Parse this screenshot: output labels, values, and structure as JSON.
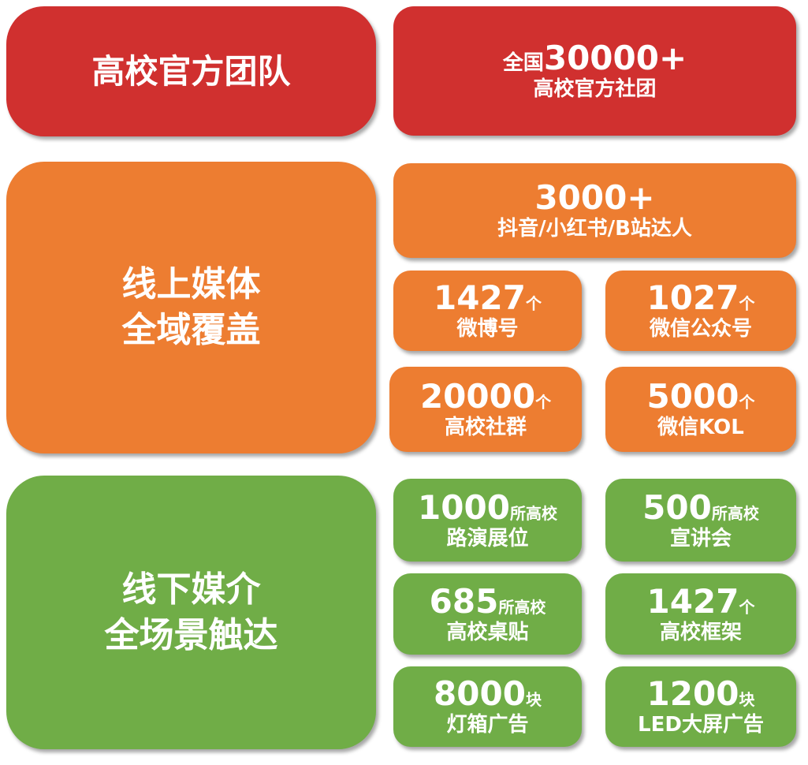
{
  "colors": {
    "red": "#d0302f",
    "orange": "#ed7d31",
    "green": "#70ad47"
  },
  "team": {
    "title": "高校官方团队",
    "stat_line1_prefix": "全国",
    "stat_num": "30000+",
    "stat_line2": "高校官方社团"
  },
  "online": {
    "title_line1": "线上媒体",
    "title_line2": "全域覆盖",
    "top": {
      "num": "3000+",
      "label": "抖音/小红书/B站达人"
    },
    "items": [
      {
        "num": "1427",
        "unit": "个",
        "label": "微博号"
      },
      {
        "num": "1027",
        "unit": "个",
        "label": "微信公众号"
      },
      {
        "num": "20000",
        "unit": "个",
        "label": "高校社群"
      },
      {
        "num": "5000",
        "unit": "个",
        "label": "微信KOL"
      }
    ]
  },
  "offline": {
    "title_line1": "线下媒介",
    "title_line2": "全场景触达",
    "items": [
      {
        "num": "1000",
        "unit": "所高校",
        "label": "路演展位"
      },
      {
        "num": "500",
        "unit": "所高校",
        "label": "宣讲会"
      },
      {
        "num": "685",
        "unit": "所高校",
        "label": "高校桌贴"
      },
      {
        "num": "1427",
        "unit": "个",
        "label": "高校框架"
      },
      {
        "num": "8000",
        "unit": "块",
        "label": "灯箱广告"
      },
      {
        "num": "1200",
        "unit": "块",
        "label": "LED大屏广告"
      }
    ]
  }
}
